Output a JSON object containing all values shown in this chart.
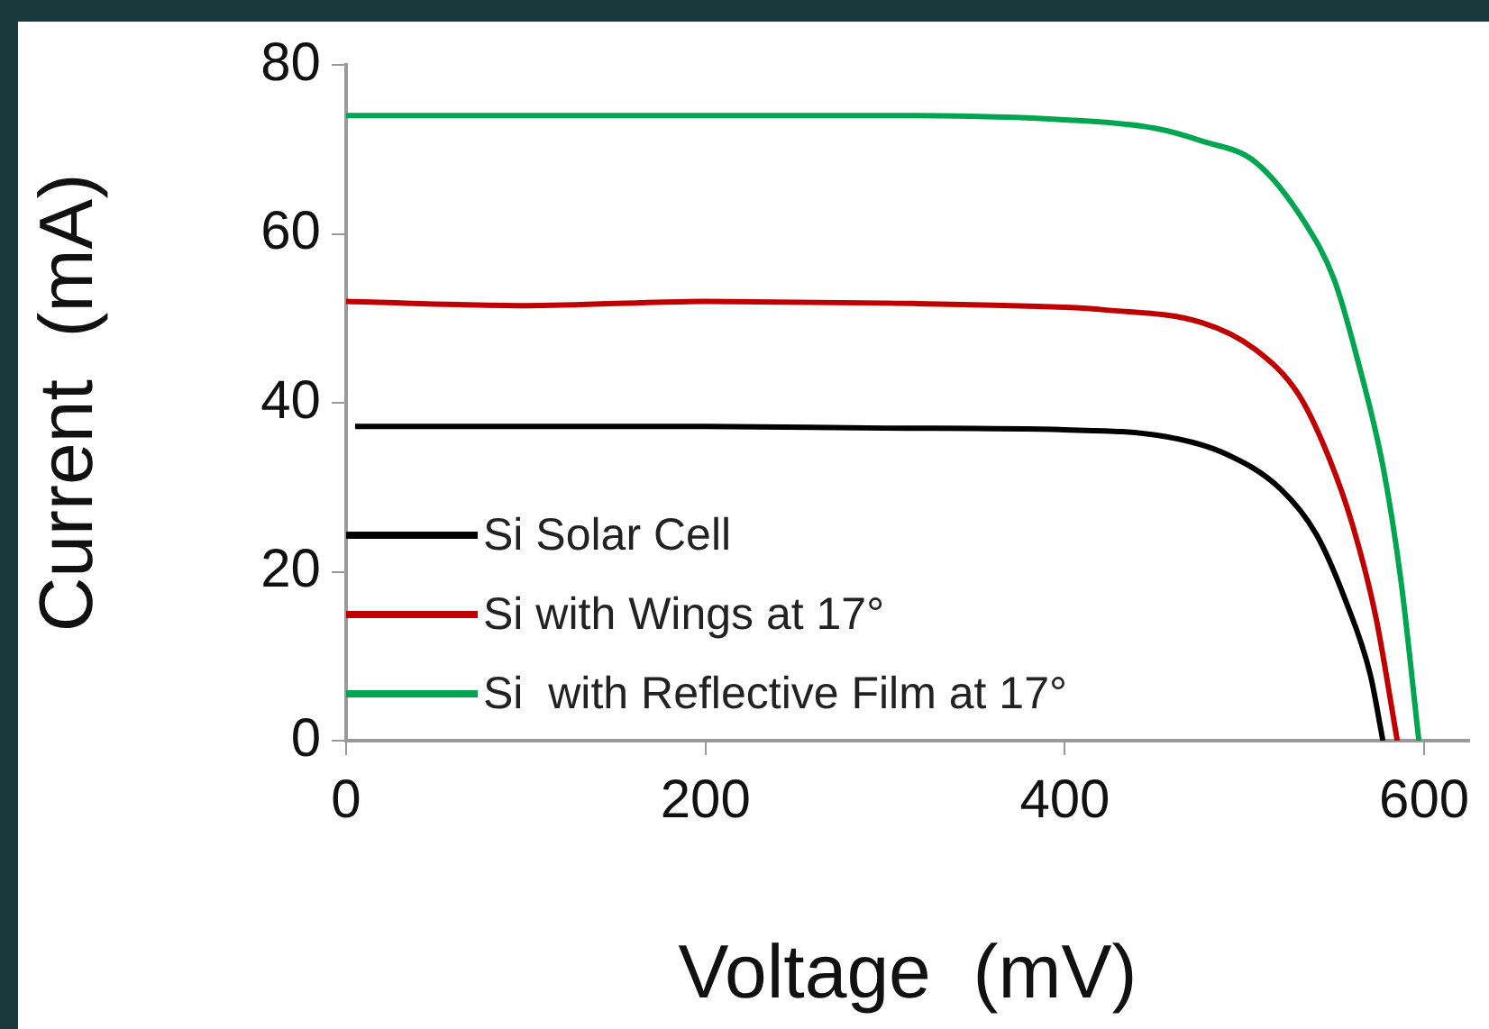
{
  "chart_data": {
    "type": "line",
    "xlabel": "Voltage  (mV)",
    "ylabel": "Current  (mA)",
    "xlim": [
      0,
      625
    ],
    "xticks": [
      0,
      200,
      400,
      600
    ],
    "ylim": [
      0,
      80
    ],
    "yticks": [
      0,
      20,
      40,
      60,
      80
    ],
    "grid": false,
    "legend": "bottom left",
    "marker": "none",
    "line_style": "solid",
    "series": [
      {
        "name": "Si Solar Cell",
        "color": "#000000",
        "x": [
          5,
          100,
          200,
          300,
          400,
          456,
          489,
          520,
          540,
          556,
          570,
          577
        ],
        "values": [
          37.2,
          37.2,
          37.2,
          37,
          36.8,
          36,
          34,
          29.8,
          24.4,
          16.7,
          7.8,
          0
        ]
      },
      {
        "name": "Si with Wings at 17°",
        "color": "#c00000",
        "x": [
          0,
          100,
          200,
          300,
          400,
          422,
          476,
          506,
          530,
          546,
          560,
          573,
          585
        ],
        "values": [
          52,
          51.5,
          52,
          51.8,
          51.3,
          51,
          49.5,
          46.3,
          41,
          34,
          25.6,
          14.7,
          0
        ]
      },
      {
        "name": "Si  with Reflective Film at 17°",
        "color": "#00a550",
        "x": [
          0,
          100,
          200,
          300,
          400,
          450,
          476,
          506,
          533,
          550,
          563,
          577,
          587,
          597
        ],
        "values": [
          74,
          74,
          74,
          74,
          73.5,
          72.5,
          71,
          68.5,
          61.5,
          54.5,
          45,
          32.5,
          19,
          0
        ]
      }
    ]
  }
}
